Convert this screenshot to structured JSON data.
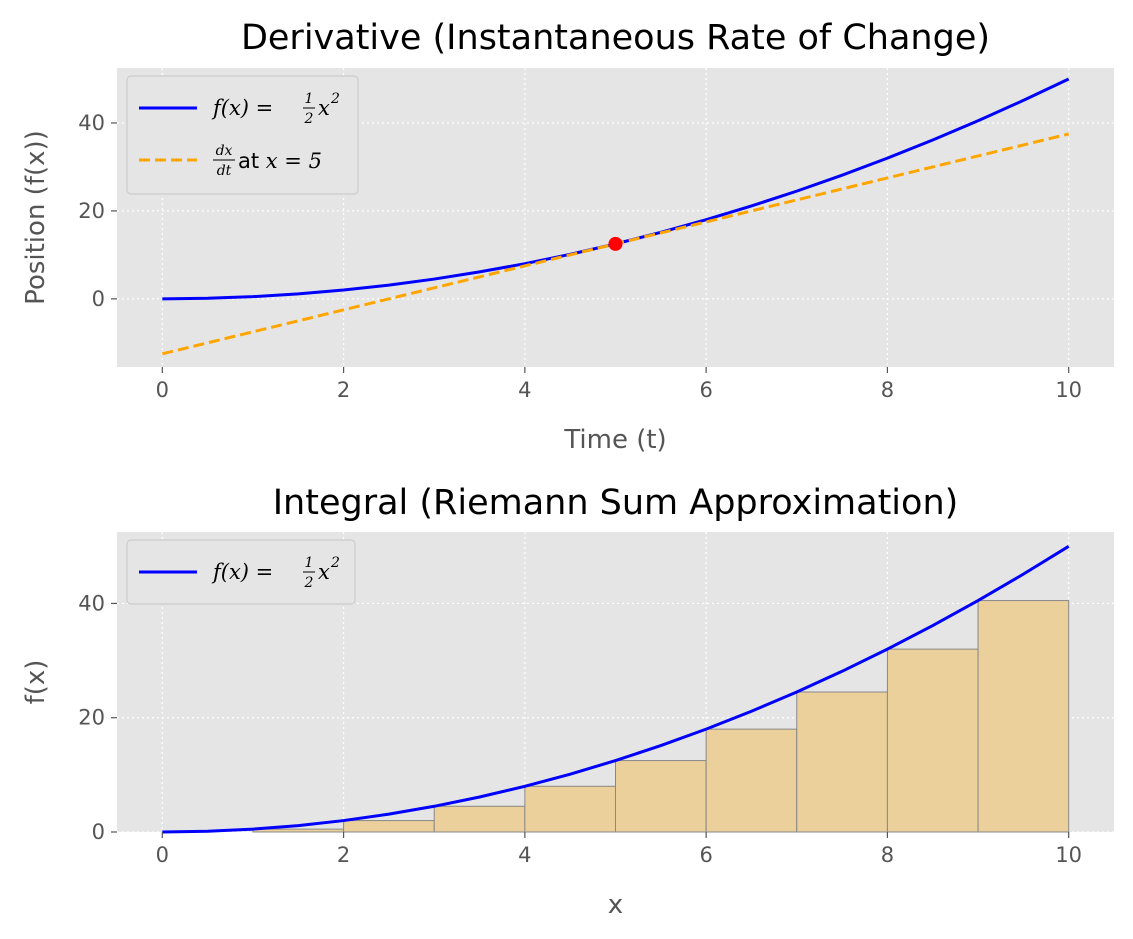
{
  "figure": {
    "background": "#ffffff",
    "axes_facecolor": "#e5e5e5"
  },
  "chart_data": [
    {
      "type": "line",
      "title": "Derivative (Instantaneous Rate of Change)",
      "xlabel": "Time (t)",
      "ylabel": "Position (f(x))",
      "xlim": [
        -0.5,
        10.5
      ],
      "ylim": [
        -15.5,
        52.5
      ],
      "xticks": [
        0,
        2,
        4,
        6,
        8,
        10
      ],
      "yticks": [
        0,
        20,
        40
      ],
      "grid": true,
      "legend_position": "upper-left",
      "series": [
        {
          "name": "f(x) = ½x²",
          "legend_label": {
            "lhs": "f(x) = ",
            "frac_num": "1",
            "frac_den": "2",
            "rhs": "x",
            "sup": "2"
          },
          "style": "solid",
          "color": "#0000ff",
          "x": [
            0,
            0.5,
            1,
            1.5,
            2,
            2.5,
            3,
            3.5,
            4,
            4.5,
            5,
            5.5,
            6,
            6.5,
            7,
            7.5,
            8,
            8.5,
            9,
            9.5,
            10
          ],
          "y": [
            0,
            0.125,
            0.5,
            1.125,
            2,
            3.125,
            4.5,
            6.125,
            8,
            10.125,
            12.5,
            15.125,
            18,
            21.125,
            24.5,
            28.125,
            32,
            36.125,
            40.5,
            45.125,
            50
          ]
        },
        {
          "name": "dx/dt at x = 5",
          "legend_label": {
            "frac_num": "dx",
            "frac_den": "dt",
            "rhs": " at ",
            "var": "x = 5"
          },
          "style": "dashed",
          "color": "#ffa500",
          "x": [
            0,
            10
          ],
          "y": [
            -12.5,
            37.5
          ]
        }
      ],
      "points": [
        {
          "x": 5,
          "y": 12.5,
          "color": "#ff0000"
        }
      ]
    },
    {
      "type": "bar",
      "title": "Integral (Riemann Sum Approximation)",
      "xlabel": "x",
      "ylabel": "f(x)",
      "xlim": [
        -0.5,
        10.5
      ],
      "ylim": [
        0,
        52.5
      ],
      "xticks": [
        0,
        2,
        4,
        6,
        8,
        10
      ],
      "yticks": [
        0,
        20,
        40
      ],
      "grid": true,
      "legend_position": "upper-left",
      "series": [
        {
          "name": "f(x) = ½x²",
          "legend_label": {
            "lhs": "f(x) = ",
            "frac_num": "1",
            "frac_den": "2",
            "rhs": "x",
            "sup": "2"
          },
          "style": "solid",
          "color": "#0000ff",
          "x": [
            0,
            0.5,
            1,
            1.5,
            2,
            2.5,
            3,
            3.5,
            4,
            4.5,
            5,
            5.5,
            6,
            6.5,
            7,
            7.5,
            8,
            8.5,
            9,
            9.5,
            10
          ],
          "y": [
            0,
            0.125,
            0.5,
            1.125,
            2,
            3.125,
            4.5,
            6.125,
            8,
            10.125,
            12.5,
            15.125,
            18,
            21.125,
            24.5,
            28.125,
            32,
            36.125,
            40.5,
            45.125,
            50
          ]
        }
      ],
      "bars": {
        "left_edges": [
          0,
          1,
          2,
          3,
          4,
          5,
          6,
          7,
          8,
          9
        ],
        "width": 1,
        "heights": [
          0,
          0.5,
          2,
          4.5,
          8,
          12.5,
          18,
          24.5,
          32,
          40.5
        ],
        "fill": "#ecd09c",
        "edge": "#888888"
      }
    }
  ]
}
